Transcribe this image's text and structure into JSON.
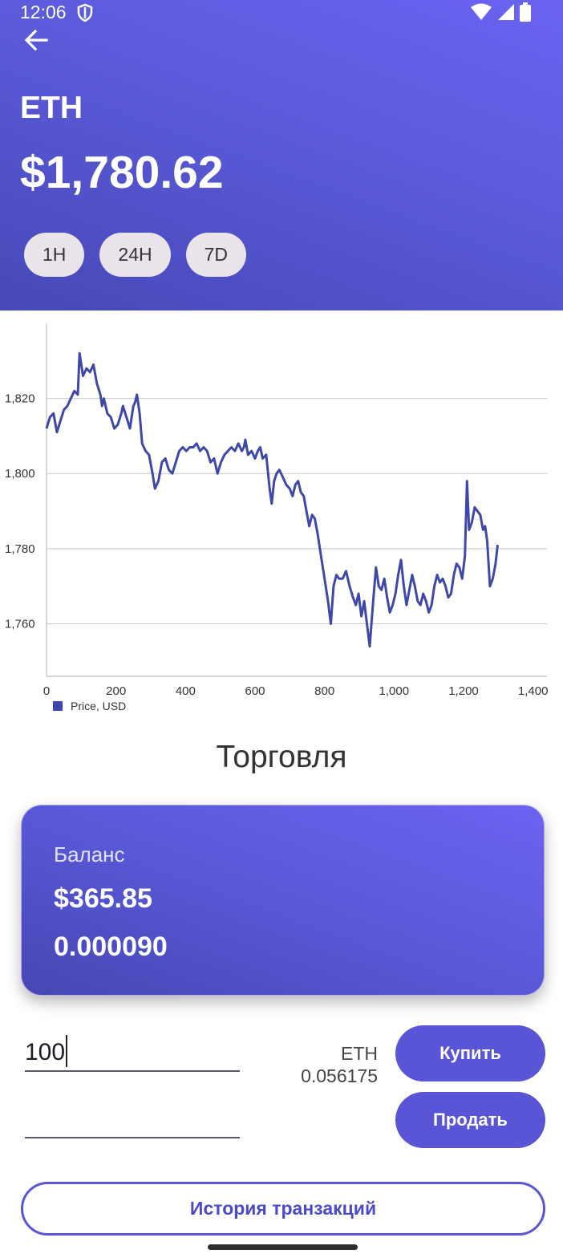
{
  "status": {
    "time": "12:06"
  },
  "header": {
    "coin": "ETH",
    "price": "$1,780.62",
    "ranges": [
      {
        "label": "1H"
      },
      {
        "label": "24H"
      },
      {
        "label": "7D"
      }
    ]
  },
  "chart_data": {
    "type": "line",
    "series": [
      {
        "name": "Price, USD",
        "color": "#3f47a8",
        "points": [
          [
            0,
            1812
          ],
          [
            10,
            1815
          ],
          [
            20,
            1816
          ],
          [
            30,
            1811
          ],
          [
            40,
            1814
          ],
          [
            50,
            1817
          ],
          [
            60,
            1818
          ],
          [
            70,
            1820
          ],
          [
            80,
            1822
          ],
          [
            90,
            1821
          ],
          [
            95,
            1832
          ],
          [
            105,
            1826
          ],
          [
            115,
            1828
          ],
          [
            125,
            1827
          ],
          [
            135,
            1829
          ],
          [
            145,
            1824
          ],
          [
            155,
            1821
          ],
          [
            160,
            1818
          ],
          [
            165,
            1820
          ],
          [
            175,
            1816
          ],
          [
            185,
            1815
          ],
          [
            195,
            1812
          ],
          [
            205,
            1813
          ],
          [
            215,
            1816
          ],
          [
            220,
            1818
          ],
          [
            230,
            1815
          ],
          [
            240,
            1812
          ],
          [
            250,
            1818
          ],
          [
            255,
            1819
          ],
          [
            260,
            1821
          ],
          [
            268,
            1816
          ],
          [
            275,
            1808
          ],
          [
            285,
            1806
          ],
          [
            295,
            1805
          ],
          [
            305,
            1800
          ],
          [
            312,
            1796
          ],
          [
            322,
            1798
          ],
          [
            332,
            1803
          ],
          [
            342,
            1804
          ],
          [
            352,
            1801
          ],
          [
            362,
            1800
          ],
          [
            372,
            1803
          ],
          [
            382,
            1806
          ],
          [
            392,
            1807
          ],
          [
            402,
            1806
          ],
          [
            412,
            1807
          ],
          [
            422,
            1807
          ],
          [
            432,
            1808
          ],
          [
            442,
            1806
          ],
          [
            452,
            1807
          ],
          [
            462,
            1806
          ],
          [
            472,
            1803
          ],
          [
            482,
            1804
          ],
          [
            492,
            1800
          ],
          [
            502,
            1803
          ],
          [
            512,
            1805
          ],
          [
            522,
            1806
          ],
          [
            532,
            1807
          ],
          [
            542,
            1806
          ],
          [
            552,
            1808
          ],
          [
            562,
            1806
          ],
          [
            568,
            1807
          ],
          [
            572,
            1809
          ],
          [
            580,
            1805
          ],
          [
            590,
            1806
          ],
          [
            600,
            1804
          ],
          [
            608,
            1806
          ],
          [
            615,
            1807
          ],
          [
            622,
            1804
          ],
          [
            632,
            1805
          ],
          [
            642,
            1796
          ],
          [
            648,
            1792
          ],
          [
            655,
            1798
          ],
          [
            662,
            1800
          ],
          [
            670,
            1801
          ],
          [
            680,
            1799
          ],
          [
            690,
            1797
          ],
          [
            700,
            1796
          ],
          [
            708,
            1794
          ],
          [
            716,
            1797
          ],
          [
            724,
            1798
          ],
          [
            732,
            1795
          ],
          [
            740,
            1794
          ],
          [
            748,
            1790
          ],
          [
            756,
            1786
          ],
          [
            764,
            1789
          ],
          [
            772,
            1788
          ],
          [
            780,
            1784
          ],
          [
            790,
            1778
          ],
          [
            800,
            1772
          ],
          [
            810,
            1766
          ],
          [
            818,
            1760
          ],
          [
            826,
            1770
          ],
          [
            834,
            1773
          ],
          [
            842,
            1772
          ],
          [
            852,
            1772
          ],
          [
            862,
            1774
          ],
          [
            872,
            1770
          ],
          [
            882,
            1767
          ],
          [
            890,
            1765
          ],
          [
            898,
            1768
          ],
          [
            906,
            1762
          ],
          [
            914,
            1766
          ],
          [
            922,
            1760
          ],
          [
            930,
            1754
          ],
          [
            940,
            1766
          ],
          [
            948,
            1775
          ],
          [
            956,
            1770
          ],
          [
            964,
            1769
          ],
          [
            972,
            1772
          ],
          [
            980,
            1767
          ],
          [
            988,
            1763
          ],
          [
            996,
            1765
          ],
          [
            1004,
            1768
          ],
          [
            1012,
            1773
          ],
          [
            1020,
            1777
          ],
          [
            1028,
            1770
          ],
          [
            1036,
            1765
          ],
          [
            1044,
            1769
          ],
          [
            1052,
            1773
          ],
          [
            1060,
            1770
          ],
          [
            1068,
            1766
          ],
          [
            1076,
            1765
          ],
          [
            1084,
            1768
          ],
          [
            1092,
            1766
          ],
          [
            1100,
            1763
          ],
          [
            1108,
            1765
          ],
          [
            1116,
            1770
          ],
          [
            1124,
            1773
          ],
          [
            1132,
            1771
          ],
          [
            1140,
            1772
          ],
          [
            1148,
            1770
          ],
          [
            1156,
            1767
          ],
          [
            1164,
            1768
          ],
          [
            1172,
            1773
          ],
          [
            1180,
            1776
          ],
          [
            1188,
            1775
          ],
          [
            1196,
            1772
          ],
          [
            1204,
            1778
          ],
          [
            1210,
            1798
          ],
          [
            1216,
            1785
          ],
          [
            1224,
            1787
          ],
          [
            1232,
            1791
          ],
          [
            1240,
            1790
          ],
          [
            1248,
            1789
          ],
          [
            1256,
            1785
          ],
          [
            1262,
            1786
          ],
          [
            1268,
            1782
          ],
          [
            1276,
            1770
          ],
          [
            1284,
            1772
          ],
          [
            1292,
            1776
          ],
          [
            1298,
            1781
          ]
        ]
      }
    ],
    "xlim": [
      0,
      1440
    ],
    "ylim": [
      1746,
      1840
    ],
    "x_ticks": [
      0,
      200,
      400,
      600,
      800,
      1000,
      1200,
      1400
    ],
    "x_tick_labels": [
      "0",
      "200",
      "400",
      "600",
      "800",
      "1,000",
      "1,200",
      "1,400"
    ],
    "y_ticks": [
      1760,
      1780,
      1800,
      1820
    ],
    "y_tick_labels": [
      "1,760",
      "1,780",
      "1,800",
      "1,820"
    ],
    "grid": "horizontal",
    "legend": "bottom-left",
    "title": "",
    "xlabel": "",
    "ylabel": ""
  },
  "trade": {
    "title": "Торговля",
    "balance_label": "Баланс",
    "balance_usd": "$365.85",
    "balance_coin": "0.000090",
    "amount_value": "100",
    "second_value": "",
    "conversion_coin": "ETH",
    "conversion_amount": "0.056175",
    "buy_label": "Купить",
    "sell_label": "Продать",
    "history_label": "История транзакций"
  },
  "colors": {
    "accent": "#5a55d6",
    "header_gradient_start": "#6c63f3",
    "header_gradient_end": "#4748b6",
    "chart_line": "#3f47a8"
  }
}
